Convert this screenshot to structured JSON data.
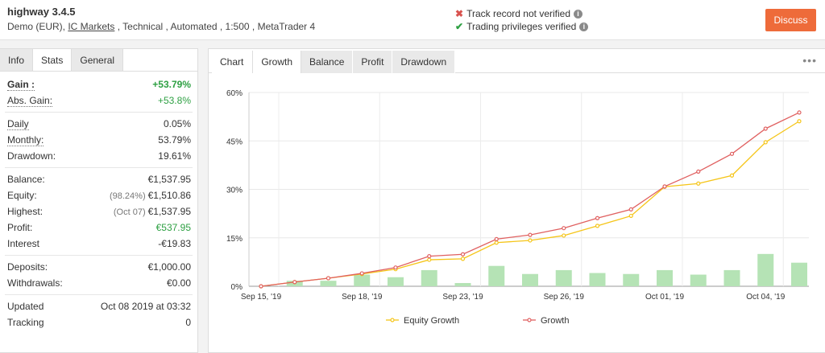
{
  "header": {
    "system_name": "highway 3.4.5",
    "meta_prefix": "Demo (EUR), ",
    "broker": "IC Markets",
    "meta_suffix": " , Technical , Automated , 1:500 , MetaTrader 4",
    "track_record": "Track record not verified",
    "trading_privileges": "Trading privileges verified",
    "discuss_label": "Discuss",
    "accent_color": "#ee6b3a"
  },
  "left_tabs": [
    "Info",
    "Stats",
    "General"
  ],
  "stats": {
    "gain_label": "Gain :",
    "gain_value": "+53.79%",
    "abs_gain_label": "Abs. Gain:",
    "abs_gain_value": "+53.8%",
    "daily_label": "Daily",
    "daily_value": "0.05%",
    "monthly_label": "Monthly:",
    "monthly_value": "53.79%",
    "drawdown_label": "Drawdown:",
    "drawdown_value": "19.61%",
    "balance_label": "Balance:",
    "balance_value": "€1,537.95",
    "equity_label": "Equity:",
    "equity_pct": "(98.24%)",
    "equity_value": "€1,510.86",
    "highest_label": "Highest:",
    "highest_date": "(Oct 07)",
    "highest_value": "€1,537.95",
    "profit_label": "Profit:",
    "profit_value": "€537.95",
    "interest_label": "Interest",
    "interest_value": "-€19.83",
    "deposits_label": "Deposits:",
    "deposits_value": "€1,000.00",
    "withdrawals_label": "Withdrawals:",
    "withdrawals_value": "€0.00",
    "updated_label": "Updated",
    "updated_value": "Oct 08 2019 at 03:32",
    "tracking_label": "Tracking",
    "tracking_value": "0"
  },
  "chart_tabs": [
    "Chart",
    "Growth",
    "Balance",
    "Profit",
    "Drawdown"
  ],
  "chart_data": {
    "type": "line",
    "title": "",
    "x": [
      "Sep 15, '19",
      "Sep 16",
      "Sep 17",
      "Sep 18, '19",
      "Sep 19",
      "Sep 20",
      "Sep 23, '19",
      "Sep 24",
      "Sep 25",
      "Sep 26, '19",
      "Sep 27",
      "Sep 30",
      "Oct 01, '19",
      "Oct 02",
      "Oct 03",
      "Oct 04, '19",
      "Oct 07"
    ],
    "x_tick_labels": [
      "Sep 15, '19",
      "Sep 18, '19",
      "Sep 23, '19",
      "Sep 26, '19",
      "Oct 01, '19",
      "Oct 04, '19"
    ],
    "x_tick_index": [
      0,
      3,
      6,
      9,
      12,
      15
    ],
    "y_ticks": [
      "0%",
      "15%",
      "30%",
      "45%",
      "60%"
    ],
    "ylim": [
      0,
      60
    ],
    "series": [
      {
        "name": "Equity Growth",
        "color": "#f5c518",
        "values": [
          0,
          1.3,
          2.5,
          3.8,
          5.3,
          8.2,
          8.5,
          13.5,
          14.2,
          15.7,
          18.7,
          21.8,
          30.8,
          31.8,
          34.3,
          44.6,
          51.1
        ]
      },
      {
        "name": "Growth",
        "color": "#e06060",
        "values": [
          0,
          1.3,
          2.5,
          4.0,
          5.8,
          9.3,
          9.9,
          14.6,
          15.9,
          18.0,
          21.1,
          23.8,
          30.9,
          35.5,
          41.0,
          48.8,
          53.8
        ]
      }
    ],
    "bars": {
      "color": "#b5e3b5",
      "values": [
        0,
        1.7,
        1.7,
        3.6,
        2.8,
        5.0,
        1.0,
        6.3,
        3.8,
        5.0,
        4.1,
        3.8,
        5.0,
        3.6,
        5.0,
        10.0,
        7.3
      ]
    },
    "legend_position": "bottom"
  }
}
